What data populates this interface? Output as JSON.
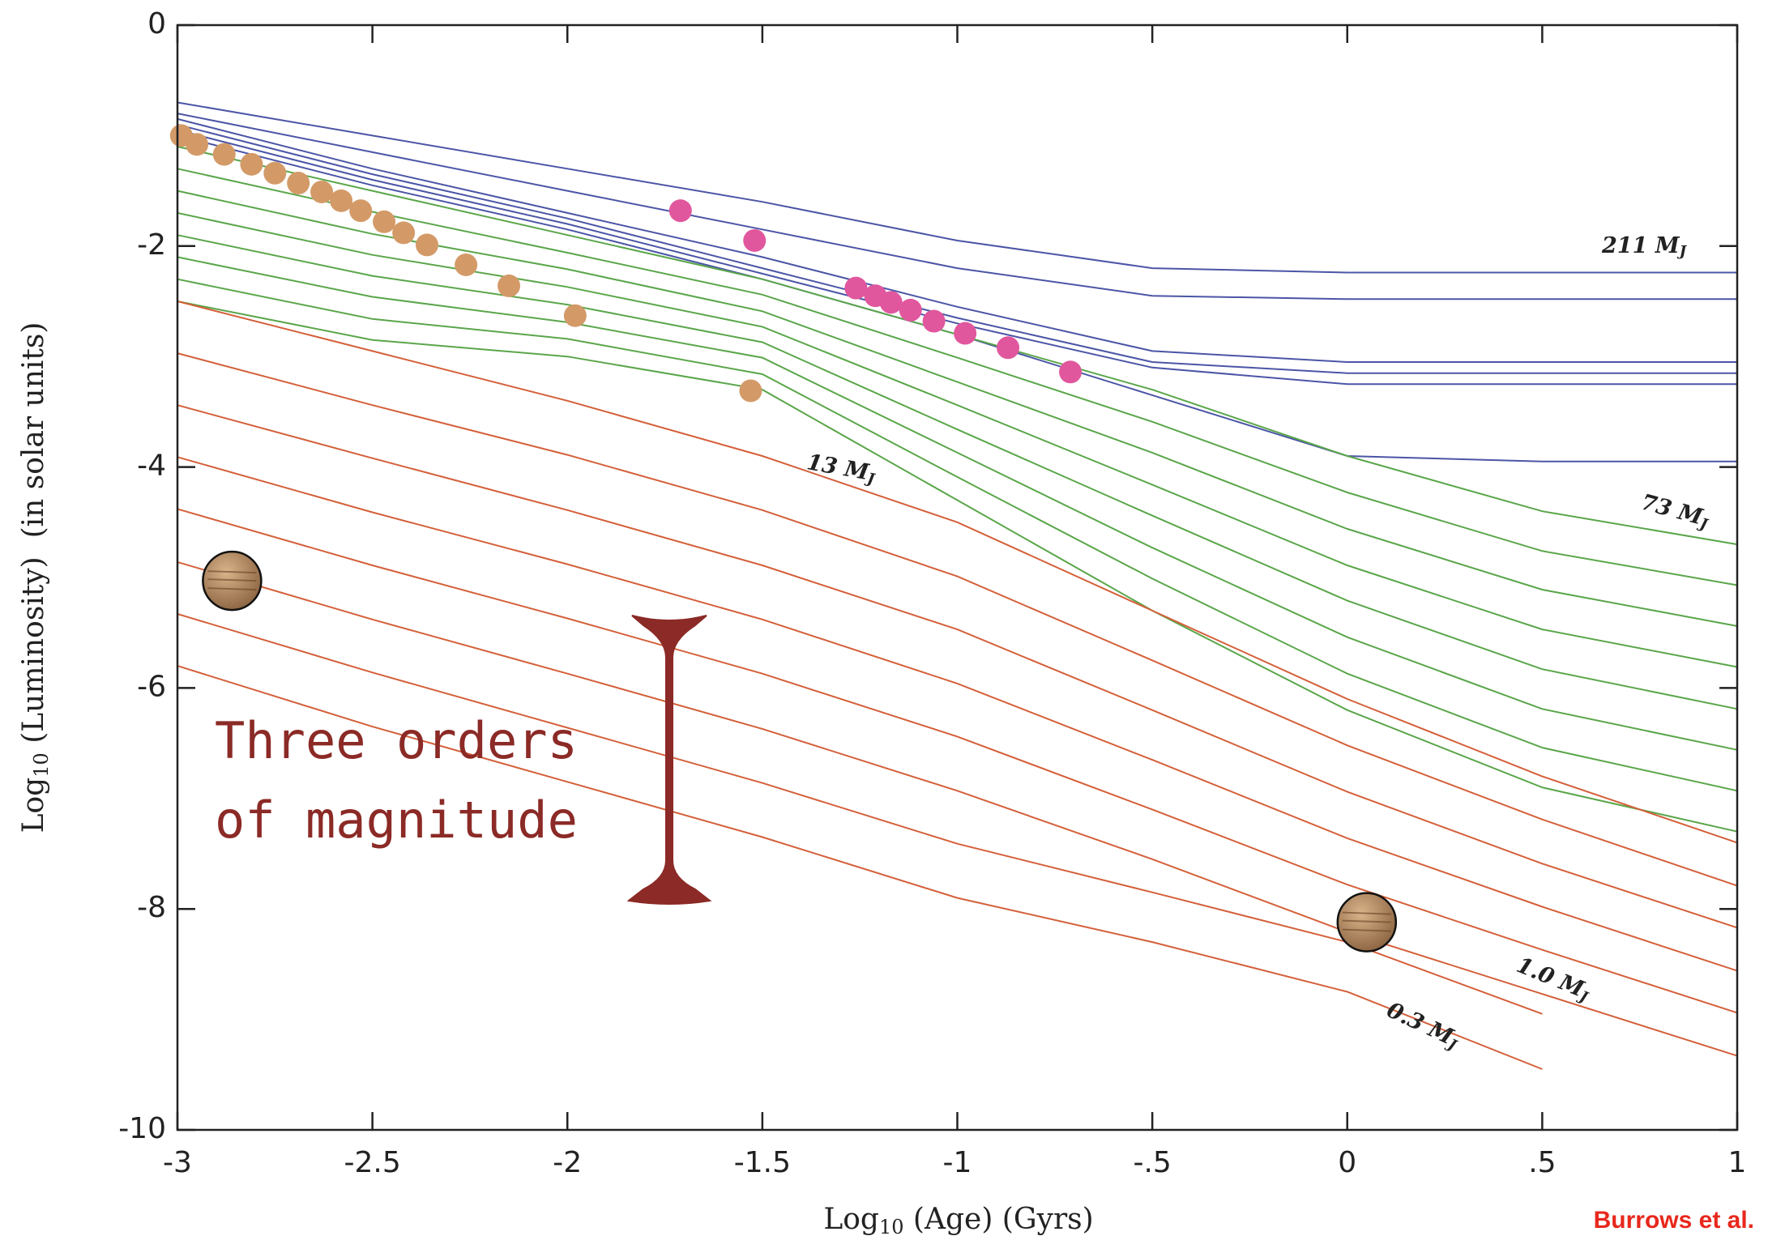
{
  "chart_data": {
    "type": "line",
    "x_label": {
      "text": "Log",
      "subscript": "10",
      "suffix": " (Age) (Gyrs)"
    },
    "y_label": {
      "text": "Log",
      "subscript": "10",
      "suffix": " (Luminosity)  (in solar units)"
    },
    "credit": "Burrows et al.",
    "xlim": [
      -3,
      1
    ],
    "ylim": [
      -10,
      0
    ],
    "xticks": [
      -3,
      {
        "value": -2.5,
        "label": "-2.5"
      },
      -2,
      {
        "value": -1.5,
        "label": "-1.5"
      },
      -1,
      {
        "value": -0.5,
        "label": "-.5"
      },
      0,
      {
        "value": 0.5,
        "label": ".5"
      },
      1
    ],
    "yticks": [
      -10,
      -8,
      -6,
      -4,
      -2,
      0
    ],
    "grid": false,
    "x": [
      -3,
      -2.5,
      -2,
      -1.5,
      -1,
      -0.5,
      0,
      0.5,
      1
    ],
    "series": [
      {
        "color": "#4b55a6",
        "values": [
          -0.7,
          -1.0,
          -1.3,
          -1.6,
          -1.95,
          -2.2,
          -2.24,
          -2.24,
          -2.24
        ]
      },
      {
        "color": "#4b55a6",
        "values": [
          -0.8,
          -1.15,
          -1.5,
          -1.85,
          -2.2,
          -2.45,
          -2.48,
          -2.48,
          -2.48
        ]
      },
      {
        "color": "#4b55a6",
        "values": [
          -0.85,
          -1.3,
          -1.7,
          -2.1,
          -2.55,
          -2.95,
          -3.05,
          -3.05,
          -3.05
        ]
      },
      {
        "color": "#4b55a6",
        "values": [
          -0.9,
          -1.35,
          -1.75,
          -2.2,
          -2.65,
          -3.05,
          -3.15,
          -3.15,
          -3.15
        ]
      },
      {
        "color": "#4b55a6",
        "values": [
          -0.95,
          -1.4,
          -1.8,
          -2.25,
          -2.7,
          -3.1,
          -3.25,
          -3.25,
          -3.25
        ]
      },
      {
        "color": "#4b55a6",
        "values": [
          -1.0,
          -1.45,
          -1.85,
          -2.3,
          -2.8,
          -3.35,
          -3.9,
          -3.95,
          -3.95
        ]
      },
      {
        "color": "#5aa64a",
        "values": [
          -1.1,
          -1.5,
          -1.9,
          -2.3,
          -2.8,
          -3.3,
          -3.9,
          -4.4,
          -4.7
        ]
      },
      {
        "color": "#5aa64a",
        "values": [
          -1.3,
          -1.69,
          -2.06,
          -2.44,
          -3.01,
          -3.59,
          -4.23,
          -4.76,
          -5.07
        ]
      },
      {
        "color": "#5aa64a",
        "values": [
          -1.5,
          -1.89,
          -2.21,
          -2.59,
          -3.23,
          -3.87,
          -4.56,
          -5.11,
          -5.44
        ]
      },
      {
        "color": "#5aa64a",
        "values": [
          -1.7,
          -2.08,
          -2.37,
          -2.73,
          -3.44,
          -4.16,
          -4.89,
          -5.47,
          -5.81
        ]
      },
      {
        "color": "#5aa64a",
        "values": [
          -1.9,
          -2.27,
          -2.53,
          -2.87,
          -3.66,
          -4.44,
          -5.21,
          -5.83,
          -6.19
        ]
      },
      {
        "color": "#5aa64a",
        "values": [
          -2.1,
          -2.46,
          -2.69,
          -3.01,
          -3.87,
          -4.73,
          -5.54,
          -6.19,
          -6.56
        ]
      },
      {
        "color": "#5aa64a",
        "values": [
          -2.3,
          -2.66,
          -2.84,
          -3.16,
          -4.09,
          -5.01,
          -5.87,
          -6.54,
          -6.93
        ]
      },
      {
        "color": "#5aa64a",
        "values": [
          -2.5,
          -2.85,
          -3.0,
          -3.3,
          -4.3,
          -5.3,
          -6.2,
          -6.9,
          -7.3
        ]
      },
      {
        "color": "#d4603a",
        "values": [
          -2.5,
          -2.95,
          -3.4,
          -3.9,
          -4.5,
          -5.3,
          -6.1,
          -6.8,
          -7.4
        ]
      },
      {
        "color": "#d4603a",
        "values": [
          -2.97,
          -3.44,
          -3.89,
          -4.39,
          -4.99,
          -5.75,
          -6.52,
          -7.19,
          -7.79
        ]
      },
      {
        "color": "#d4603a",
        "values": [
          -3.44,
          -3.92,
          -4.39,
          -4.89,
          -5.47,
          -6.2,
          -6.94,
          -7.59,
          -8.17
        ]
      },
      {
        "color": "#d4603a",
        "values": [
          -3.91,
          -4.41,
          -4.88,
          -5.38,
          -5.96,
          -6.65,
          -7.36,
          -7.98,
          -8.56
        ]
      },
      {
        "color": "#d4603a",
        "values": [
          -4.38,
          -4.89,
          -5.37,
          -5.87,
          -6.44,
          -7.1,
          -7.78,
          -8.37,
          -8.94
        ]
      },
      {
        "color": "#d4603a",
        "values": [
          -4.86,
          -5.38,
          -5.87,
          -6.37,
          -6.93,
          -7.55,
          -8.21,
          -8.77,
          -9.33
        ]
      },
      {
        "color": "#d4603a",
        "values": [
          -5.33,
          -5.86,
          -6.36,
          -6.86,
          -7.41,
          -7.85,
          -8.3,
          -8.95,
          null
        ]
      },
      {
        "color": "#d4603a",
        "values": [
          -5.8,
          -6.35,
          -6.85,
          -7.35,
          -7.9,
          -8.3,
          -8.75,
          -9.45,
          null
        ]
      }
    ],
    "points": [
      {
        "color": "#d39a68",
        "x": [
          -2.99,
          -2.95,
          -2.88,
          -2.81,
          -2.75,
          -2.69,
          -2.63,
          -2.58,
          -2.53,
          -2.47,
          -2.42,
          -2.36,
          -2.26,
          -2.15,
          -1.98,
          -1.53
        ],
        "y": [
          -1.0,
          -1.08,
          -1.17,
          -1.26,
          -1.34,
          -1.43,
          -1.51,
          -1.59,
          -1.68,
          -1.78,
          -1.88,
          -1.99,
          -2.17,
          -2.36,
          -2.63,
          -3.31
        ]
      },
      {
        "color": "#e0579e",
        "x": [
          -1.71,
          -1.52,
          -1.26,
          -1.21,
          -1.17,
          -1.12,
          -1.06,
          -0.98,
          -0.87,
          -0.71
        ],
        "y": [
          -1.68,
          -1.95,
          -2.38,
          -2.45,
          -2.51,
          -2.58,
          -2.68,
          -2.79,
          -2.92,
          -3.14
        ]
      }
    ],
    "planets": {
      "x": [
        -2.86,
        0.05
      ],
      "y": [
        -5.03,
        -8.12
      ]
    },
    "annotations": [
      {
        "text": "211 M",
        "subscript": "J"
      },
      {
        "text": "73 M",
        "subscript": "J"
      },
      {
        "text": "13 M",
        "subscript": "J"
      },
      {
        "text": "1.0 M",
        "subscript": "J"
      },
      {
        "text": "0.3 M",
        "subscript": "J"
      }
    ],
    "note": [
      "Three orders",
      "of magnitude"
    ]
  }
}
